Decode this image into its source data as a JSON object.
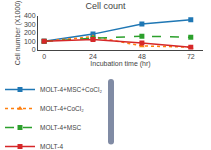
{
  "chart_data": {
    "type": "line",
    "title": "Cell count",
    "xlabel": "Incubation time (hr)",
    "ylabel": "Cell number (X1000)",
    "x": [
      0,
      24,
      48,
      72
    ],
    "series": [
      {
        "name": "MOLT-4+MSC+CoCl₂",
        "values": [
          100,
          185,
          305,
          355
        ],
        "marker": "square",
        "line_style": "solid"
      },
      {
        "name": "MOLT-4+CoCl₂",
        "values": [
          100,
          155,
          45,
          30
        ],
        "marker": "triangle-up",
        "line_style": "dotted"
      },
      {
        "name": "MOLT-4+MSC",
        "values": [
          100,
          135,
          160,
          148
        ],
        "marker": "square",
        "line_style": "dashed"
      },
      {
        "name": "MOLT-4",
        "values": [
          100,
          120,
          80,
          28
        ],
        "marker": "square",
        "line_style": "solid"
      }
    ],
    "xlim": [
      -3,
      78
    ],
    "xticks": [
      0,
      24,
      48,
      72
    ],
    "ylim": [
      0,
      400
    ],
    "yticks": [
      0,
      100,
      200,
      300,
      400
    ],
    "grid": false,
    "legend": "bottom"
  }
}
